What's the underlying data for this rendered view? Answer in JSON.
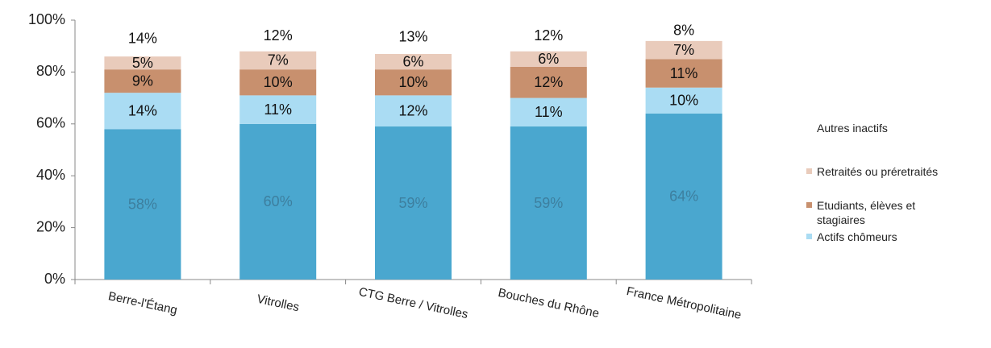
{
  "chart_data": {
    "type": "stacked_bar",
    "categories": [
      "Berre-l'Étang",
      "Vitrolles",
      "CTG Berre / Vitrolles",
      "Bouches du Rhône",
      "France Métropolitaine"
    ],
    "series": [
      {
        "name": null,
        "color": "#4aa7cf",
        "values": [
          58,
          60,
          59,
          59,
          64
        ],
        "value_labels": [
          "58%",
          "60%",
          "59%",
          "59%",
          "64%"
        ]
      },
      {
        "name": "Actifs chômeurs",
        "color": "#aadcf3",
        "values": [
          14,
          11,
          12,
          11,
          10
        ],
        "value_labels": [
          "14%",
          "11%",
          "12%",
          "11%",
          "10%"
        ]
      },
      {
        "name": "Etudiants, élèves et stagiaires",
        "color": "#c8906e",
        "values": [
          9,
          10,
          10,
          12,
          11
        ],
        "value_labels": [
          "9%",
          "10%",
          "10%",
          "12%",
          "11%"
        ]
      },
      {
        "name": "Retraités ou préretraités",
        "color": "#e9cbbb",
        "values": [
          5,
          7,
          6,
          6,
          7
        ],
        "value_labels": [
          "5%",
          "7%",
          "6%",
          "6%",
          "7%"
        ]
      },
      {
        "name": "Autres inactifs",
        "color": "#ffffff",
        "values": [
          14,
          12,
          13,
          12,
          8
        ],
        "value_labels": [
          "14%",
          "12%",
          "13%",
          "12%",
          "8%"
        ]
      }
    ],
    "ylim": [
      0,
      100
    ],
    "yticks": [
      {
        "value": 0,
        "label": "0%"
      },
      {
        "value": 20,
        "label": "20%"
      },
      {
        "value": 40,
        "label": "40%"
      },
      {
        "value": 60,
        "label": "60%"
      },
      {
        "value": 80,
        "label": "80%"
      },
      {
        "value": 100,
        "label": "100%"
      }
    ],
    "grid": false,
    "legend": "right"
  }
}
